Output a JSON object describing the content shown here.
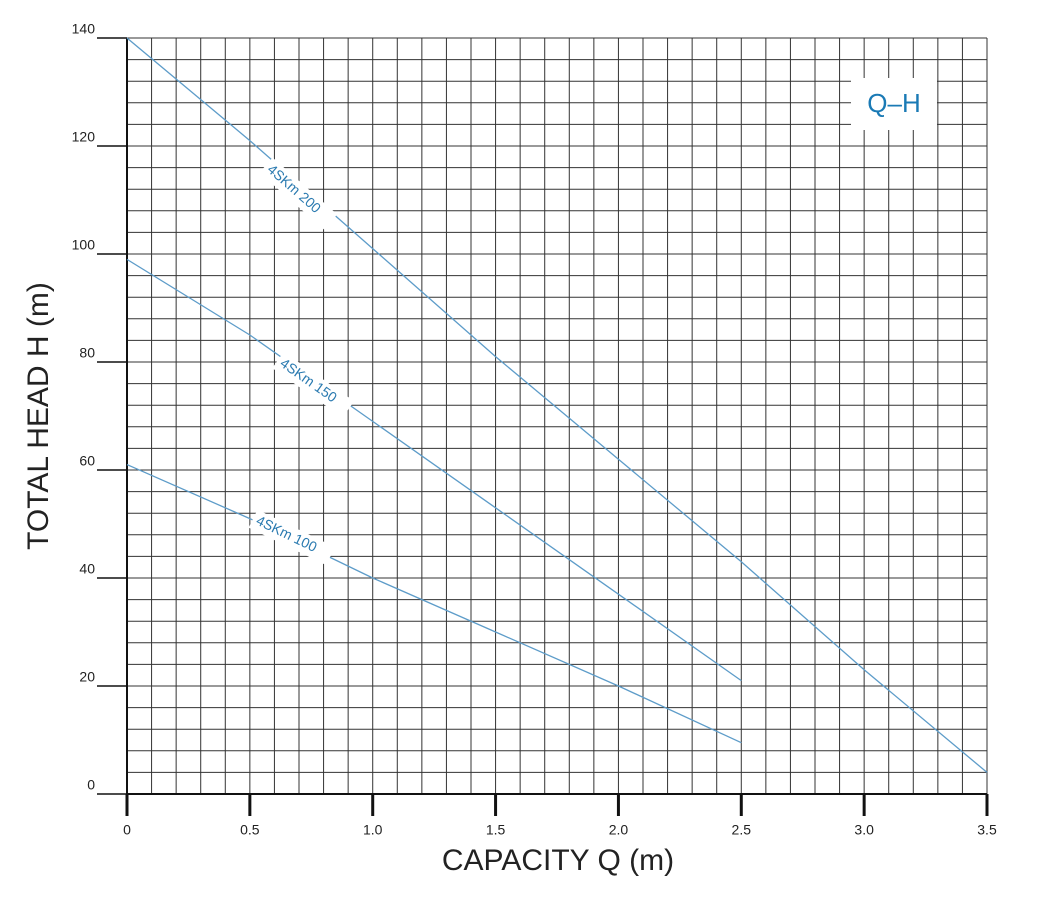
{
  "chart_data": {
    "type": "line",
    "badge": "Q–H",
    "xlabel": "CAPACITY Q (m)",
    "ylabel": "TOTAL HEAD H (m)",
    "x": [
      0,
      0.5,
      1.0,
      1.5,
      2.0,
      2.5,
      3.0,
      3.5
    ],
    "series": [
      {
        "name": "4SKm 200",
        "color": "#5d9cc9",
        "values": [
          140,
          121,
          101,
          81,
          62,
          43,
          23,
          4
        ]
      },
      {
        "name": "4SKm 150",
        "color": "#5d9cc9",
        "values": [
          99,
          85,
          69,
          53,
          37,
          21,
          null,
          null
        ]
      },
      {
        "name": "4SKm 100",
        "color": "#5d9cc9",
        "values": [
          61,
          51,
          40,
          30,
          20,
          9.5,
          null,
          null
        ]
      }
    ],
    "xlim": [
      0,
      3.5
    ],
    "ylim": [
      0,
      140
    ],
    "xticks": [
      0,
      0.5,
      {
        "value": 1,
        "label": "1.0"
      },
      1.5,
      {
        "value": 2,
        "label": "2.0"
      },
      2.5,
      {
        "value": 3,
        "label": "3.0"
      },
      3.5
    ],
    "yticks": [
      0,
      20,
      40,
      60,
      80,
      100,
      120,
      140
    ],
    "grid": true,
    "grid_x_step": 0.1,
    "grid_y_step": 4
  }
}
